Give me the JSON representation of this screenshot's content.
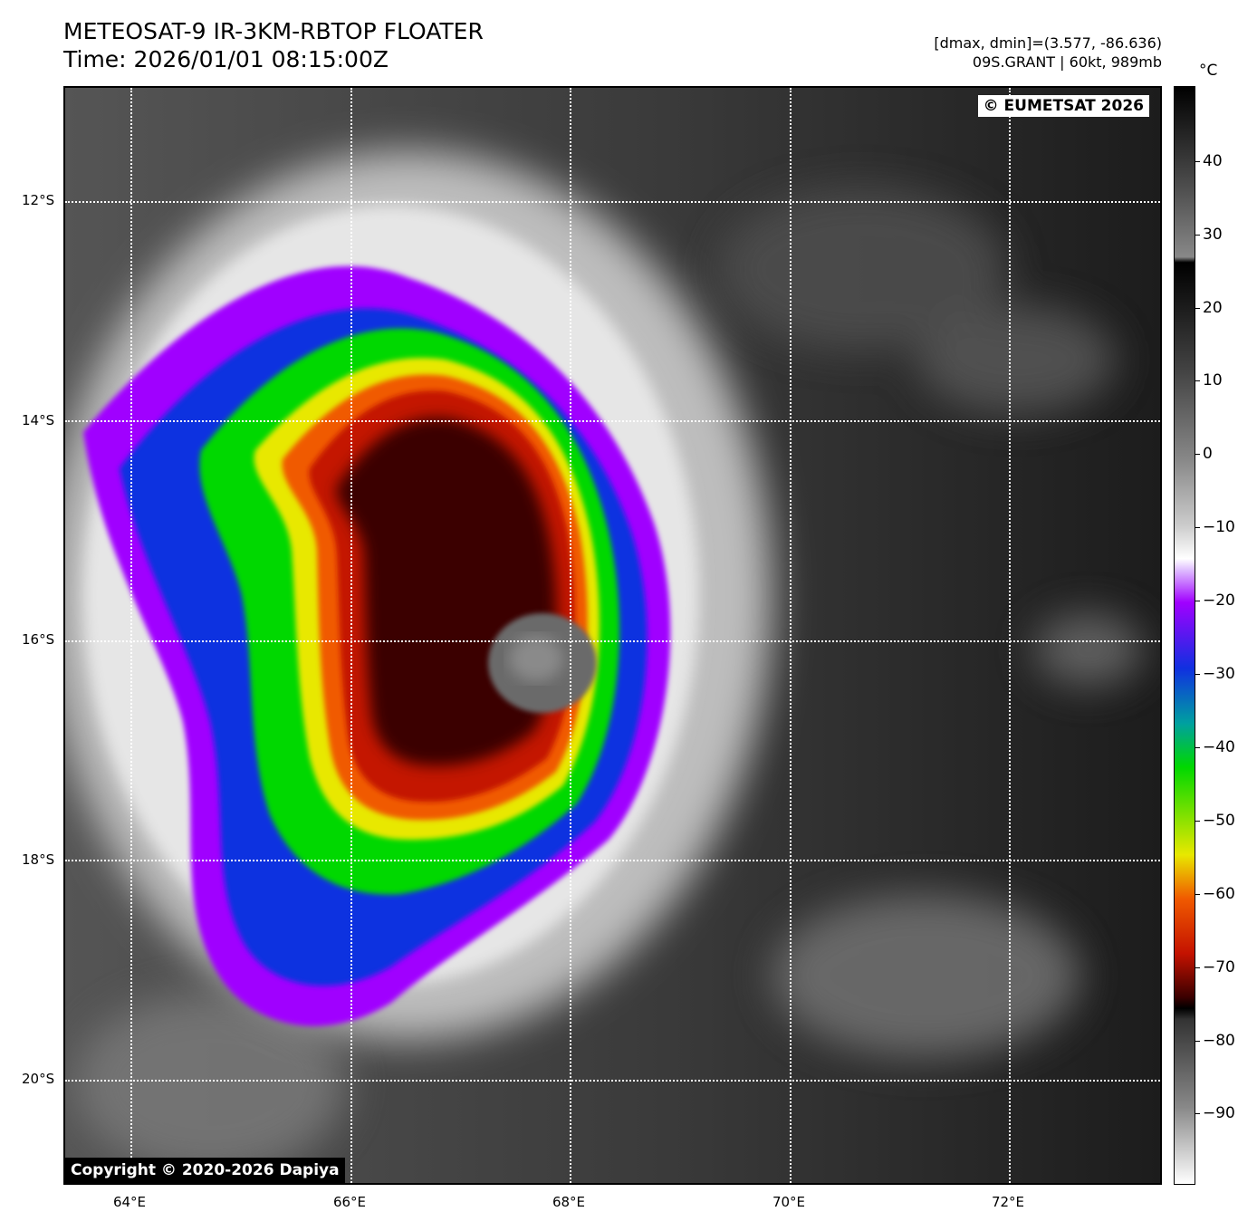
{
  "header": {
    "title_line1": "METEOSAT-9 IR-3KM-RBTOP FLOATER",
    "title_line2": "Time: 2026/01/01 08:15:00Z",
    "info_line1": "[dmax, dmin]=(3.577, -86.636)",
    "info_line2": "09S.GRANT | 60kt, 989mb"
  },
  "watermarks": {
    "top_right": "© EUMETSAT 2026",
    "bottom_left": "Copyright © 2020-2026 Dapiya"
  },
  "axes": {
    "lon_ticks": [
      "64°E",
      "66°E",
      "68°E",
      "70°E",
      "72°E"
    ],
    "lat_ticks": [
      "12°S",
      "14°S",
      "16°S",
      "18°S",
      "20°S"
    ]
  },
  "colorbar": {
    "unit": "°C",
    "ticks": [
      "40",
      "30",
      "20",
      "10",
      "0",
      "−10",
      "−20",
      "−30",
      "−40",
      "−50",
      "−60",
      "−70",
      "−80",
      "−90"
    ],
    "range": [
      -100,
      50
    ]
  },
  "colors": {
    "eye": "#6a6a6a",
    "core": "#3a0000",
    "red": "#c41200",
    "orange": "#f05a00",
    "yellow": "#e8e800",
    "green": "#00d800",
    "blue": "#1030e0",
    "purple": "#a000ff",
    "cirrus": "#e0e0e0"
  }
}
